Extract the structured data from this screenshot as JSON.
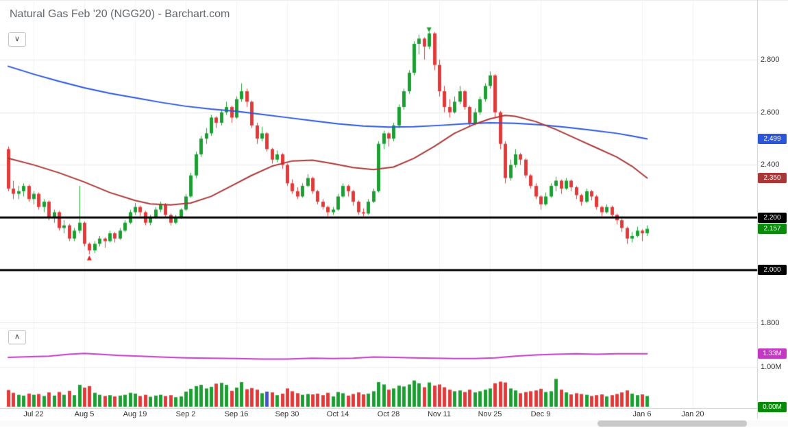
{
  "header": {
    "title": "Natural Gas Feb '20 (NGG20) - Barchart.com"
  },
  "controls": {
    "price_panel_toggle_icon": "∨",
    "volume_panel_toggle_icon": "∧"
  },
  "chart_data": {
    "type": "candlestick",
    "title": "Natural Gas Feb '20 (NGG20)",
    "up_color": "#1d9e33",
    "down_color": "#e03a3a",
    "ma_blue_color": "#2b56d8",
    "ma_red_color": "#a83838",
    "volume_ma_color": "#c23ac2",
    "grid_color": "#e9e9e9",
    "x_ticks": [
      {
        "label": "Jul 22",
        "index": 5
      },
      {
        "label": "Aug 5",
        "index": 15
      },
      {
        "label": "Aug 19",
        "index": 25
      },
      {
        "label": "Sep 2",
        "index": 35
      },
      {
        "label": "Sep 16",
        "index": 45
      },
      {
        "label": "Sep 30",
        "index": 55
      },
      {
        "label": "Oct 14",
        "index": 65
      },
      {
        "label": "Oct 28",
        "index": 75
      },
      {
        "label": "Nov 11",
        "index": 85
      },
      {
        "label": "Nov 25",
        "index": 95
      },
      {
        "label": "Dec 9",
        "index": 105
      },
      {
        "label": "Jan 6",
        "index": 125
      },
      {
        "label": "Jan 20",
        "index": 135
      }
    ],
    "price_ticks": [
      {
        "label": "2.800",
        "value": 2.8
      },
      {
        "label": "2.600",
        "value": 2.6
      },
      {
        "label": "2.400",
        "value": 2.4
      },
      {
        "label": "1.800",
        "value": 1.8
      }
    ],
    "price_gridlines": [
      2.8,
      2.6,
      2.4,
      2.2,
      2.0,
      1.8
    ],
    "horizontal_lines": [
      {
        "value": 2.2,
        "color": "#000000",
        "width": 3
      },
      {
        "value": 2.0,
        "color": "#000000",
        "width": 3
      }
    ],
    "price_badges": [
      {
        "label": "2.499",
        "value": 2.499,
        "color": "#2b56d8",
        "name": "ma-blue-value-badge"
      },
      {
        "label": "2.350",
        "value": 2.35,
        "color": "#a83838",
        "name": "ma-red-value-badge"
      },
      {
        "label": "2.200",
        "value": 2.2,
        "color": "#000000",
        "name": "hline-upper-value-badge"
      },
      {
        "label": "2.157",
        "value": 2.157,
        "color": "#0a8a0a",
        "name": "last-price-badge"
      },
      {
        "label": "2.000",
        "value": 2.0,
        "color": "#000000",
        "name": "hline-lower-value-badge"
      }
    ],
    "volume_ticks": [
      {
        "label": "1.00M",
        "value": 1.0
      }
    ],
    "volume_badges": [
      {
        "label": "1.33M",
        "value": 1.33,
        "color": "#c23ac2",
        "name": "volume-ma-value-badge"
      },
      {
        "label": "0.00M",
        "value": 0.0,
        "color": "#0a8a0a",
        "name": "current-volume-badge"
      }
    ],
    "markers": [
      {
        "index": 16,
        "price": 2.045,
        "direction": "up",
        "color": "#dd2222",
        "name": "swing-low-marker"
      },
      {
        "index": 83,
        "price": 2.915,
        "direction": "down",
        "color": "#1d9e33",
        "name": "swing-high-marker"
      }
    ],
    "volume_color_overrides": {
      "51": "#4455cc"
    },
    "ma_blue": [
      [
        0,
        2.775
      ],
      [
        5,
        2.745
      ],
      [
        10,
        2.718
      ],
      [
        15,
        2.693
      ],
      [
        20,
        2.672
      ],
      [
        25,
        2.655
      ],
      [
        30,
        2.638
      ],
      [
        35,
        2.623
      ],
      [
        40,
        2.612
      ],
      [
        45,
        2.604
      ],
      [
        50,
        2.592
      ],
      [
        55,
        2.58
      ],
      [
        60,
        2.568
      ],
      [
        65,
        2.556
      ],
      [
        70,
        2.548
      ],
      [
        75,
        2.544
      ],
      [
        80,
        2.545
      ],
      [
        85,
        2.55
      ],
      [
        90,
        2.556
      ],
      [
        95,
        2.56
      ],
      [
        100,
        2.558
      ],
      [
        105,
        2.552
      ],
      [
        110,
        2.543
      ],
      [
        115,
        2.532
      ],
      [
        120,
        2.52
      ],
      [
        123,
        2.51
      ],
      [
        126,
        2.499
      ]
    ],
    "ma_red": [
      [
        0,
        2.425
      ],
      [
        5,
        2.4
      ],
      [
        10,
        2.37
      ],
      [
        15,
        2.335
      ],
      [
        20,
        2.295
      ],
      [
        25,
        2.265
      ],
      [
        28,
        2.252
      ],
      [
        32,
        2.248
      ],
      [
        36,
        2.255
      ],
      [
        40,
        2.28
      ],
      [
        44,
        2.32
      ],
      [
        48,
        2.36
      ],
      [
        52,
        2.395
      ],
      [
        56,
        2.415
      ],
      [
        60,
        2.418
      ],
      [
        64,
        2.405
      ],
      [
        68,
        2.39
      ],
      [
        72,
        2.382
      ],
      [
        76,
        2.392
      ],
      [
        80,
        2.425
      ],
      [
        84,
        2.47
      ],
      [
        88,
        2.52
      ],
      [
        92,
        2.555
      ],
      [
        95,
        2.575
      ],
      [
        98,
        2.588
      ],
      [
        100,
        2.585
      ],
      [
        104,
        2.565
      ],
      [
        108,
        2.535
      ],
      [
        112,
        2.5
      ],
      [
        116,
        2.465
      ],
      [
        120,
        2.43
      ],
      [
        123,
        2.395
      ],
      [
        126,
        2.35
      ]
    ],
    "volume_ma_purple": [
      [
        0,
        1.24
      ],
      [
        8,
        1.27
      ],
      [
        12,
        1.32
      ],
      [
        15,
        1.34
      ],
      [
        18,
        1.32
      ],
      [
        22,
        1.29
      ],
      [
        26,
        1.27
      ],
      [
        30,
        1.25
      ],
      [
        35,
        1.23
      ],
      [
        40,
        1.22
      ],
      [
        45,
        1.21
      ],
      [
        50,
        1.2
      ],
      [
        55,
        1.2
      ],
      [
        60,
        1.22
      ],
      [
        64,
        1.21
      ],
      [
        68,
        1.22
      ],
      [
        72,
        1.25
      ],
      [
        76,
        1.24
      ],
      [
        80,
        1.23
      ],
      [
        84,
        1.22
      ],
      [
        88,
        1.21
      ],
      [
        92,
        1.21
      ],
      [
        96,
        1.23
      ],
      [
        100,
        1.27
      ],
      [
        104,
        1.3
      ],
      [
        108,
        1.32
      ],
      [
        112,
        1.33
      ],
      [
        116,
        1.32
      ],
      [
        120,
        1.33
      ],
      [
        123,
        1.33
      ],
      [
        126,
        1.33
      ]
    ],
    "candles": [
      [
        2.46,
        2.47,
        2.3,
        2.31,
        0.42
      ],
      [
        2.31,
        2.34,
        2.27,
        2.29,
        0.35
      ],
      [
        2.29,
        2.32,
        2.27,
        2.3,
        0.3
      ],
      [
        2.3,
        2.33,
        2.28,
        2.32,
        0.28
      ],
      [
        2.32,
        2.325,
        2.26,
        2.27,
        0.33
      ],
      [
        2.27,
        2.3,
        2.25,
        2.29,
        0.3
      ],
      [
        2.29,
        2.295,
        2.23,
        2.24,
        0.32
      ],
      [
        2.24,
        2.27,
        2.22,
        2.26,
        0.27
      ],
      [
        2.26,
        2.265,
        2.19,
        2.2,
        0.36
      ],
      [
        2.2,
        2.23,
        2.18,
        2.22,
        0.28
      ],
      [
        2.22,
        2.225,
        2.15,
        2.16,
        0.37
      ],
      [
        2.16,
        2.19,
        2.14,
        2.17,
        0.3
      ],
      [
        2.17,
        2.175,
        2.11,
        2.12,
        0.4
      ],
      [
        2.12,
        2.16,
        2.11,
        2.15,
        0.29
      ],
      [
        2.15,
        2.32,
        2.14,
        2.18,
        0.55
      ],
      [
        2.18,
        2.185,
        2.09,
        2.1,
        0.48
      ],
      [
        2.1,
        2.105,
        2.06,
        2.075,
        0.52
      ],
      [
        2.075,
        2.11,
        2.065,
        2.1,
        0.35
      ],
      [
        2.1,
        2.13,
        2.09,
        2.12,
        0.3
      ],
      [
        2.12,
        2.125,
        2.085,
        2.11,
        0.27
      ],
      [
        2.11,
        2.15,
        2.105,
        2.14,
        0.29
      ],
      [
        2.14,
        2.145,
        2.105,
        2.12,
        0.26
      ],
      [
        2.12,
        2.16,
        2.115,
        2.15,
        0.28
      ],
      [
        2.15,
        2.19,
        2.145,
        2.18,
        0.3
      ],
      [
        2.18,
        2.23,
        2.175,
        2.22,
        0.35
      ],
      [
        2.22,
        2.255,
        2.21,
        2.24,
        0.33
      ],
      [
        2.24,
        2.245,
        2.205,
        2.22,
        0.27
      ],
      [
        2.22,
        2.225,
        2.17,
        2.18,
        0.3
      ],
      [
        2.18,
        2.21,
        2.17,
        2.2,
        0.25
      ],
      [
        2.2,
        2.24,
        2.195,
        2.23,
        0.28
      ],
      [
        2.23,
        2.26,
        2.22,
        2.25,
        0.3
      ],
      [
        2.25,
        2.255,
        2.2,
        2.21,
        0.27
      ],
      [
        2.21,
        2.215,
        2.17,
        2.18,
        0.29
      ],
      [
        2.18,
        2.21,
        2.175,
        2.2,
        0.24
      ],
      [
        2.2,
        2.235,
        2.195,
        2.23,
        0.26
      ],
      [
        2.23,
        2.29,
        2.225,
        2.28,
        0.38
      ],
      [
        2.28,
        2.37,
        2.275,
        2.36,
        0.45
      ],
      [
        2.36,
        2.45,
        2.35,
        2.44,
        0.52
      ],
      [
        2.44,
        2.51,
        2.43,
        2.5,
        0.55
      ],
      [
        2.5,
        2.54,
        2.48,
        2.52,
        0.46
      ],
      [
        2.52,
        2.59,
        2.51,
        2.58,
        0.5
      ],
      [
        2.58,
        2.585,
        2.54,
        2.56,
        0.58
      ],
      [
        2.56,
        2.61,
        2.55,
        2.6,
        0.6
      ],
      [
        2.6,
        2.64,
        2.59,
        2.62,
        0.55
      ],
      [
        2.62,
        2.625,
        2.56,
        2.58,
        0.4
      ],
      [
        2.58,
        2.66,
        2.575,
        2.65,
        0.48
      ],
      [
        2.65,
        2.71,
        2.64,
        2.68,
        0.62
      ],
      [
        2.68,
        2.69,
        2.62,
        2.64,
        0.44
      ],
      [
        2.64,
        2.645,
        2.54,
        2.55,
        0.47
      ],
      [
        2.55,
        2.56,
        2.48,
        2.5,
        0.43
      ],
      [
        2.5,
        2.545,
        2.49,
        2.52,
        0.34
      ],
      [
        2.52,
        2.525,
        2.45,
        2.46,
        0.38
      ],
      [
        2.46,
        2.465,
        2.405,
        2.42,
        0.36
      ],
      [
        2.42,
        2.455,
        2.41,
        2.44,
        0.29
      ],
      [
        2.44,
        2.445,
        2.385,
        2.4,
        0.33
      ],
      [
        2.4,
        2.405,
        2.32,
        2.33,
        0.46
      ],
      [
        2.33,
        2.345,
        2.29,
        2.3,
        0.39
      ],
      [
        2.3,
        2.315,
        2.27,
        2.28,
        0.34
      ],
      [
        2.28,
        2.33,
        2.275,
        2.32,
        0.3
      ],
      [
        2.32,
        2.365,
        2.315,
        2.35,
        0.32
      ],
      [
        2.35,
        2.355,
        2.29,
        2.3,
        0.31
      ],
      [
        2.3,
        2.305,
        2.25,
        2.26,
        0.33
      ],
      [
        2.26,
        2.27,
        2.23,
        2.24,
        0.29
      ],
      [
        2.24,
        2.245,
        2.205,
        2.22,
        0.35
      ],
      [
        2.22,
        2.24,
        2.21,
        2.23,
        0.26
      ],
      [
        2.23,
        2.29,
        2.225,
        2.28,
        0.37
      ],
      [
        2.28,
        2.33,
        2.275,
        2.32,
        0.34
      ],
      [
        2.32,
        2.325,
        2.28,
        2.3,
        0.28
      ],
      [
        2.3,
        2.305,
        2.245,
        2.26,
        0.32
      ],
      [
        2.26,
        2.265,
        2.21,
        2.22,
        0.36
      ],
      [
        2.22,
        2.235,
        2.205,
        2.215,
        0.31
      ],
      [
        2.215,
        2.27,
        2.21,
        2.26,
        0.33
      ],
      [
        2.26,
        2.31,
        2.255,
        2.3,
        0.39
      ],
      [
        2.3,
        2.49,
        2.295,
        2.48,
        0.62
      ],
      [
        2.48,
        2.53,
        2.46,
        2.52,
        0.56
      ],
      [
        2.52,
        2.525,
        2.47,
        2.5,
        0.43
      ],
      [
        2.5,
        2.56,
        2.49,
        2.55,
        0.46
      ],
      [
        2.55,
        2.63,
        2.54,
        2.62,
        0.53
      ],
      [
        2.62,
        2.69,
        2.61,
        2.68,
        0.51
      ],
      [
        2.68,
        2.76,
        2.67,
        2.75,
        0.56
      ],
      [
        2.75,
        2.87,
        2.74,
        2.86,
        0.66
      ],
      [
        2.86,
        2.895,
        2.82,
        2.88,
        0.59
      ],
      [
        2.88,
        2.885,
        2.8,
        2.85,
        0.49
      ],
      [
        2.85,
        2.905,
        2.84,
        2.9,
        0.61
      ],
      [
        2.9,
        2.905,
        2.76,
        2.78,
        0.53
      ],
      [
        2.78,
        2.8,
        2.66,
        2.68,
        0.56
      ],
      [
        2.68,
        2.7,
        2.6,
        2.62,
        0.49
      ],
      [
        2.62,
        2.65,
        2.58,
        2.6,
        0.43
      ],
      [
        2.6,
        2.66,
        2.595,
        2.64,
        0.39
      ],
      [
        2.64,
        2.7,
        2.63,
        2.68,
        0.41
      ],
      [
        2.68,
        2.685,
        2.61,
        2.62,
        0.37
      ],
      [
        2.62,
        2.625,
        2.545,
        2.56,
        0.43
      ],
      [
        2.56,
        2.615,
        2.55,
        2.6,
        0.36
      ],
      [
        2.6,
        2.66,
        2.59,
        2.65,
        0.39
      ],
      [
        2.65,
        2.71,
        2.64,
        2.7,
        0.43
      ],
      [
        2.7,
        2.755,
        2.69,
        2.74,
        0.46
      ],
      [
        2.74,
        2.745,
        2.58,
        2.6,
        0.59
      ],
      [
        2.6,
        2.605,
        2.46,
        2.48,
        0.63
      ],
      [
        2.48,
        2.49,
        2.33,
        2.35,
        0.61
      ],
      [
        2.35,
        2.42,
        2.34,
        2.4,
        0.46
      ],
      [
        2.4,
        2.46,
        2.39,
        2.44,
        0.41
      ],
      [
        2.44,
        2.445,
        2.4,
        2.42,
        0.34
      ],
      [
        2.42,
        2.425,
        2.35,
        2.36,
        0.37
      ],
      [
        2.36,
        2.365,
        2.31,
        2.32,
        0.39
      ],
      [
        2.32,
        2.33,
        2.27,
        2.28,
        0.41
      ],
      [
        2.28,
        2.285,
        2.23,
        2.25,
        0.45
      ],
      [
        2.25,
        2.295,
        2.245,
        2.28,
        0.37
      ],
      [
        2.28,
        2.33,
        2.275,
        2.32,
        0.39
      ],
      [
        2.32,
        2.355,
        2.3,
        2.34,
        0.7
      ],
      [
        2.34,
        2.345,
        2.29,
        2.31,
        0.43
      ],
      [
        2.31,
        2.35,
        2.305,
        2.34,
        0.36
      ],
      [
        2.34,
        2.345,
        2.3,
        2.315,
        0.31
      ],
      [
        2.315,
        2.32,
        2.27,
        2.285,
        0.34
      ],
      [
        2.285,
        2.29,
        2.245,
        2.26,
        0.32
      ],
      [
        2.26,
        2.31,
        2.255,
        2.3,
        0.3
      ],
      [
        2.3,
        2.305,
        2.265,
        2.28,
        0.27
      ],
      [
        2.28,
        2.285,
        2.23,
        2.24,
        0.29
      ],
      [
        2.24,
        2.245,
        2.205,
        2.22,
        0.31
      ],
      [
        2.22,
        2.25,
        2.215,
        2.24,
        0.26
      ],
      [
        2.24,
        2.245,
        2.2,
        2.21,
        0.29
      ],
      [
        2.21,
        2.215,
        2.175,
        2.19,
        0.32
      ],
      [
        2.19,
        2.195,
        2.145,
        2.16,
        0.36
      ],
      [
        2.16,
        2.165,
        2.1,
        2.12,
        0.41
      ],
      [
        2.12,
        2.145,
        2.105,
        2.13,
        0.33
      ],
      [
        2.13,
        2.165,
        2.125,
        2.15,
        0.29
      ],
      [
        2.15,
        2.155,
        2.11,
        2.14,
        0.31
      ],
      [
        2.14,
        2.17,
        2.13,
        2.157,
        0.27
      ]
    ]
  },
  "scrollbar": {
    "orientation": "horizontal"
  }
}
